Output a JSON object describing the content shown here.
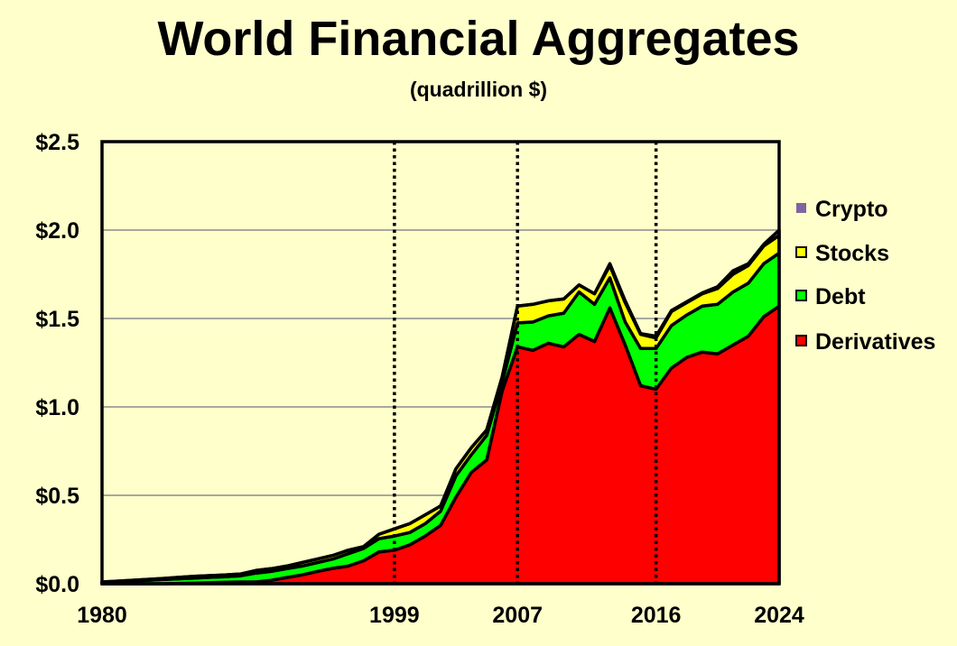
{
  "chart_data": {
    "type": "area",
    "stacked": true,
    "title": "World Financial Aggregates",
    "subtitle": "(quadrillion $)",
    "xlabel": "",
    "ylabel": "",
    "xlim": [
      1980,
      2024
    ],
    "ylim": [
      0,
      2.5
    ],
    "grid": true,
    "legend_position": "right",
    "y_ticks": [
      0,
      0.5,
      1.0,
      1.5,
      2.0,
      2.5
    ],
    "y_tick_labels": [
      "$0.0",
      "$0.5",
      "$1.0",
      "$1.5",
      "$2.0",
      "$2.5"
    ],
    "x_ticks": [
      1980,
      1999,
      2007,
      2016,
      2024
    ],
    "x_tick_labels": [
      "1980",
      "1999",
      "2007",
      "2016",
      "2024"
    ],
    "reference_lines": [
      1999,
      2007,
      2016
    ],
    "x": [
      1980,
      1981,
      1982,
      1983,
      1984,
      1985,
      1986,
      1987,
      1988,
      1989,
      1990,
      1991,
      1992,
      1993,
      1994,
      1995,
      1996,
      1997,
      1998,
      1999,
      2000,
      2001,
      2002,
      2003,
      2004,
      2005,
      2006,
      2007,
      2008,
      2009,
      2010,
      2011,
      2012,
      2013,
      2014,
      2015,
      2016,
      2017,
      2018,
      2019,
      2020,
      2021,
      2022,
      2023,
      2024
    ],
    "series": [
      {
        "name": "Derivatives",
        "color": "#FF0000",
        "values": [
          0,
          0,
          0,
          0,
          0,
          0.002,
          0.004,
          0.006,
          0.008,
          0.01,
          0.01,
          0.02,
          0.035,
          0.05,
          0.07,
          0.087,
          0.1,
          0.13,
          0.18,
          0.19,
          0.22,
          0.27,
          0.33,
          0.49,
          0.63,
          0.7,
          1.09,
          1.34,
          1.32,
          1.36,
          1.34,
          1.41,
          1.37,
          1.56,
          1.35,
          1.12,
          1.1,
          1.22,
          1.28,
          1.31,
          1.3,
          1.35,
          1.4,
          1.51,
          1.57
        ]
      },
      {
        "name": "Debt",
        "color": "#00FF00",
        "values": [
          0.008,
          0.012,
          0.016,
          0.02,
          0.024,
          0.026,
          0.028,
          0.03,
          0.032,
          0.035,
          0.05,
          0.05,
          0.05,
          0.05,
          0.05,
          0.053,
          0.07,
          0.07,
          0.075,
          0.08,
          0.07,
          0.07,
          0.08,
          0.12,
          0.1,
          0.14,
          0.05,
          0.135,
          0.16,
          0.155,
          0.19,
          0.24,
          0.21,
          0.17,
          0.13,
          0.21,
          0.23,
          0.24,
          0.24,
          0.26,
          0.28,
          0.3,
          0.3,
          0.3,
          0.3
        ]
      },
      {
        "name": "Stocks",
        "color": "#FFFF00",
        "values": [
          0.002,
          0.003,
          0.004,
          0.005,
          0.006,
          0.008,
          0.01,
          0.01,
          0.01,
          0.01,
          0.015,
          0.015,
          0.015,
          0.02,
          0.02,
          0.02,
          0.02,
          0.01,
          0.025,
          0.04,
          0.05,
          0.05,
          0.03,
          0.04,
          0.04,
          0.03,
          0.03,
          0.095,
          0.1,
          0.085,
          0.08,
          0.04,
          0.06,
          0.07,
          0.11,
          0.08,
          0.06,
          0.08,
          0.07,
          0.07,
          0.09,
          0.1,
          0.1,
          0.1,
          0.1
        ]
      },
      {
        "name": "Crypto",
        "color": "#8064A2",
        "values": [
          0,
          0,
          0,
          0,
          0,
          0,
          0,
          0,
          0,
          0,
          0,
          0,
          0,
          0,
          0,
          0,
          0,
          0,
          0,
          0,
          0,
          0,
          0,
          0,
          0,
          0,
          0,
          0,
          0,
          0,
          0,
          0,
          0,
          0.01,
          0.01,
          0.005,
          0.01,
          0.005,
          0.005,
          0.005,
          0.01,
          0.02,
          0.01,
          0.01,
          0.03
        ]
      }
    ],
    "legend_order": [
      "Crypto",
      "Stocks",
      "Debt",
      "Derivatives"
    ]
  }
}
